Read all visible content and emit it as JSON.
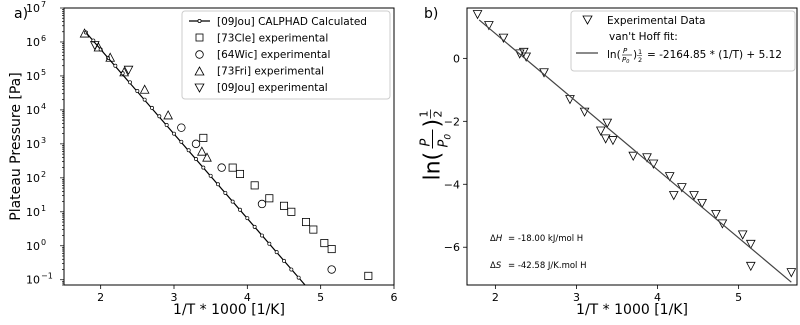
{
  "chart_data": [
    {
      "type": "scatter",
      "panel_label": "a)",
      "xlabel": "1/T * 1000 [1/K]",
      "ylabel": "Plateau Pressure [Pa]",
      "xlim": [
        1.5,
        6.0
      ],
      "ylim": [
        0.07,
        10000000
      ],
      "y_scale": "log",
      "x_ticks": [
        "2",
        "3",
        "4",
        "5",
        "6"
      ],
      "y_ticks": [
        "10^-1",
        "10^0",
        "10^1",
        "10^2",
        "10^3",
        "10^4",
        "10^5",
        "10^6",
        "10^7"
      ],
      "legend_position": "top-right",
      "series": [
        {
          "name": "[09Jou] CALPHAD Calculated",
          "marker": "line-with-small-circles",
          "points": [
            [
              1.8,
              1900000
            ],
            [
              1.9,
              1100000
            ],
            [
              2.0,
              600000
            ],
            [
              2.1,
              340000
            ],
            [
              2.2,
              200000
            ],
            [
              2.3,
              120000
            ],
            [
              2.4,
              65000
            ],
            [
              2.5,
              36000
            ],
            [
              2.6,
              20000
            ],
            [
              2.7,
              11500
            ],
            [
              2.8,
              6500
            ],
            [
              2.9,
              3600
            ],
            [
              3.0,
              2000
            ],
            [
              3.1,
              1150
            ],
            [
              3.2,
              650
            ],
            [
              3.3,
              360
            ],
            [
              3.4,
              200
            ],
            [
              3.5,
              115
            ],
            [
              3.6,
              65
            ],
            [
              3.7,
              36
            ],
            [
              3.8,
              20
            ],
            [
              3.9,
              11.5
            ],
            [
              4.0,
              6.5
            ],
            [
              4.1,
              3.6
            ],
            [
              4.2,
              2.0
            ],
            [
              4.3,
              1.15
            ],
            [
              4.4,
              0.65
            ],
            [
              4.5,
              0.36
            ],
            [
              4.6,
              0.2
            ],
            [
              4.7,
              0.115
            ]
          ]
        },
        {
          "name": "[73Cle] experimental",
          "marker": "square",
          "points": [
            [
              3.4,
              1500
            ],
            [
              3.8,
              200
            ],
            [
              3.9,
              130
            ],
            [
              4.1,
              60
            ],
            [
              4.3,
              25
            ],
            [
              4.5,
              15
            ],
            [
              4.6,
              10
            ],
            [
              4.8,
              5
            ],
            [
              4.9,
              3
            ],
            [
              5.05,
              1.2
            ],
            [
              5.15,
              0.8
            ],
            [
              5.65,
              0.13
            ]
          ]
        },
        {
          "name": "[64Wic] experimental",
          "marker": "circle",
          "points": [
            [
              3.1,
              3000
            ],
            [
              3.3,
              1000
            ],
            [
              3.65,
              200
            ],
            [
              4.2,
              17
            ],
            [
              5.15,
              0.2
            ]
          ]
        },
        {
          "name": "[73Fri] experimental",
          "marker": "triangle-up",
          "points": [
            [
              1.78,
              1800000
            ],
            [
              1.97,
              700000
            ],
            [
              2.13,
              350000
            ],
            [
              2.32,
              130000
            ],
            [
              2.6,
              40000
            ],
            [
              2.92,
              7000
            ],
            [
              3.38,
              600
            ],
            [
              3.45,
              400
            ]
          ]
        },
        {
          "name": "[09Jou] experimental",
          "marker": "triangle-down",
          "points": [
            [
              1.92,
              800000
            ],
            [
              2.38,
              150000
            ]
          ]
        }
      ]
    },
    {
      "type": "scatter",
      "panel_label": "b)",
      "xlabel": "1/T * 1000 [1/K]",
      "ylim": [
        -7.2,
        1.6
      ],
      "xlim": [
        1.65,
        5.72
      ],
      "x_ticks": [
        "2",
        "3",
        "4",
        "5"
      ],
      "y_ticks": [
        "−6",
        "−4",
        "−2",
        "0"
      ],
      "legend_position": "top-right",
      "series": [
        {
          "name": "Experimental Data",
          "marker": "triangle-down",
          "points": [
            [
              1.78,
              1.4
            ],
            [
              1.92,
              1.05
            ],
            [
              2.1,
              0.65
            ],
            [
              2.3,
              0.15
            ],
            [
              2.35,
              0.2
            ],
            [
              2.38,
              0.05
            ],
            [
              2.6,
              -0.45
            ],
            [
              2.92,
              -1.3
            ],
            [
              3.1,
              -1.7
            ],
            [
              3.3,
              -2.3
            ],
            [
              3.36,
              -2.55
            ],
            [
              3.38,
              -2.05
            ],
            [
              3.45,
              -2.6
            ],
            [
              3.7,
              -3.1
            ],
            [
              3.87,
              -3.15
            ],
            [
              3.95,
              -3.35
            ],
            [
              4.15,
              -3.75
            ],
            [
              4.2,
              -4.35
            ],
            [
              4.3,
              -4.1
            ],
            [
              4.45,
              -4.35
            ],
            [
              4.55,
              -4.6
            ],
            [
              4.72,
              -4.95
            ],
            [
              4.8,
              -5.25
            ],
            [
              5.05,
              -5.6
            ],
            [
              5.15,
              -5.9
            ],
            [
              5.15,
              -6.6
            ],
            [
              5.65,
              -6.8
            ]
          ]
        },
        {
          "name": "fit",
          "marker": "line",
          "points": [
            [
              1.8,
              1.22
            ],
            [
              5.65,
              -7.11
            ]
          ]
        }
      ]
    }
  ],
  "panel_a": {
    "label": "a)",
    "xlabel": "1/T * 1000 [1/K]",
    "ylabel": "Plateau Pressure [Pa]",
    "x_ticks": [
      "2",
      "3",
      "4",
      "5",
      "6"
    ],
    "legend": [
      "[09Jou] CALPHAD Calculated",
      "[73Cle] experimental",
      "[64Wic] experimental",
      "[73Fri] experimental",
      "[09Jou] experimental"
    ]
  },
  "panel_b": {
    "label": "b)",
    "xlabel": "1/T * 1000 [1/K]",
    "x_ticks": [
      "2",
      "3",
      "4",
      "5"
    ],
    "y_ticks": [
      "−6",
      "−4",
      "−2",
      "0"
    ],
    "legend_data": "Experimental Data",
    "legend_fit_title": "van't Hoff fit:",
    "legend_fit_eq": "= -2164.85 * (1/T) + 5.12",
    "annot_h_val": "= -18.00 kJ/mol H",
    "annot_s_val": "= -42.58 J/K.mol H"
  }
}
